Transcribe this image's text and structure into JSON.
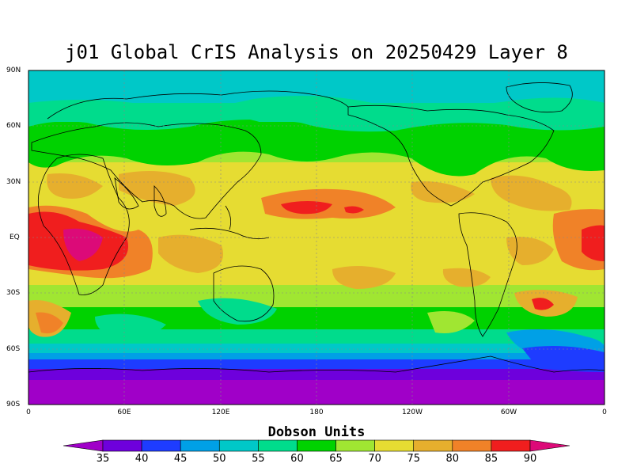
{
  "title": "j01 Global CrIS Analysis on 20250429 Layer 8",
  "lat_labels": [
    "90N",
    "60N",
    "30N",
    "EQ",
    "30S",
    "60S",
    "90S"
  ],
  "lon_labels": [
    "0",
    "60E",
    "120E",
    "180",
    "120W",
    "60W",
    "0"
  ],
  "colorbar": {
    "title": "Dobson Units",
    "labels": [
      "35",
      "40",
      "45",
      "50",
      "55",
      "60",
      "65",
      "70",
      "75",
      "80",
      "85",
      "90"
    ],
    "colors": [
      "#a000c8",
      "#6e00dc",
      "#1e3cff",
      "#00a0e6",
      "#00c8c8",
      "#00dc8c",
      "#00d200",
      "#a0e632",
      "#e6dc32",
      "#e6af2d",
      "#f08228",
      "#f01e1e",
      "#dc0a78"
    ]
  },
  "chart_data": {
    "type": "heatmap",
    "title": "j01 Global CrIS Analysis on 20250429 Layer 8",
    "units": "Dobson Units",
    "lon_range": [
      0,
      360
    ],
    "lat_range": [
      -90,
      90
    ],
    "levels": [
      35,
      40,
      45,
      50,
      55,
      60,
      65,
      70,
      75,
      80,
      85,
      90
    ],
    "grid": true
  }
}
